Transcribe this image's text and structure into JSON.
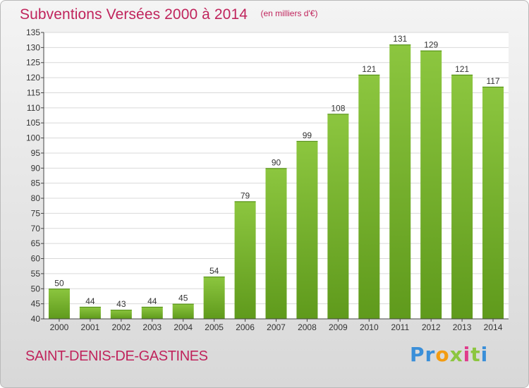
{
  "chart_data": {
    "type": "bar",
    "title": "Subventions Versées 2000 à 2014",
    "subtitle": "(en milliers d'€)",
    "categories": [
      "2000",
      "2001",
      "2002",
      "2003",
      "2004",
      "2005",
      "2006",
      "2007",
      "2008",
      "2009",
      "2010",
      "2011",
      "2012",
      "2013",
      "2014"
    ],
    "values": [
      50,
      44,
      43,
      44,
      45,
      54,
      79,
      90,
      99,
      108,
      121,
      131,
      129,
      121,
      117
    ],
    "ylim": [
      40,
      135
    ],
    "yticks": [
      40,
      45,
      50,
      55,
      60,
      65,
      70,
      75,
      80,
      85,
      90,
      95,
      100,
      105,
      110,
      115,
      120,
      125,
      130,
      135
    ],
    "grid": true,
    "bar_color": "#8cc63f",
    "bar_color_dark": "#5f9a1c"
  },
  "location": "SAINT-DENIS-DE-GASTINES",
  "logo": {
    "letters": [
      "P",
      "r",
      "o",
      "x",
      "i",
      "t",
      "i"
    ],
    "colors": [
      "#3a8fd9",
      "#3a8fd9",
      "#f39c12",
      "#8cc63f",
      "#e03c8c",
      "#8cc63f",
      "#3a8fd9"
    ]
  },
  "colors": {
    "text_accent": "#c0245c",
    "axis_text": "#333333"
  }
}
